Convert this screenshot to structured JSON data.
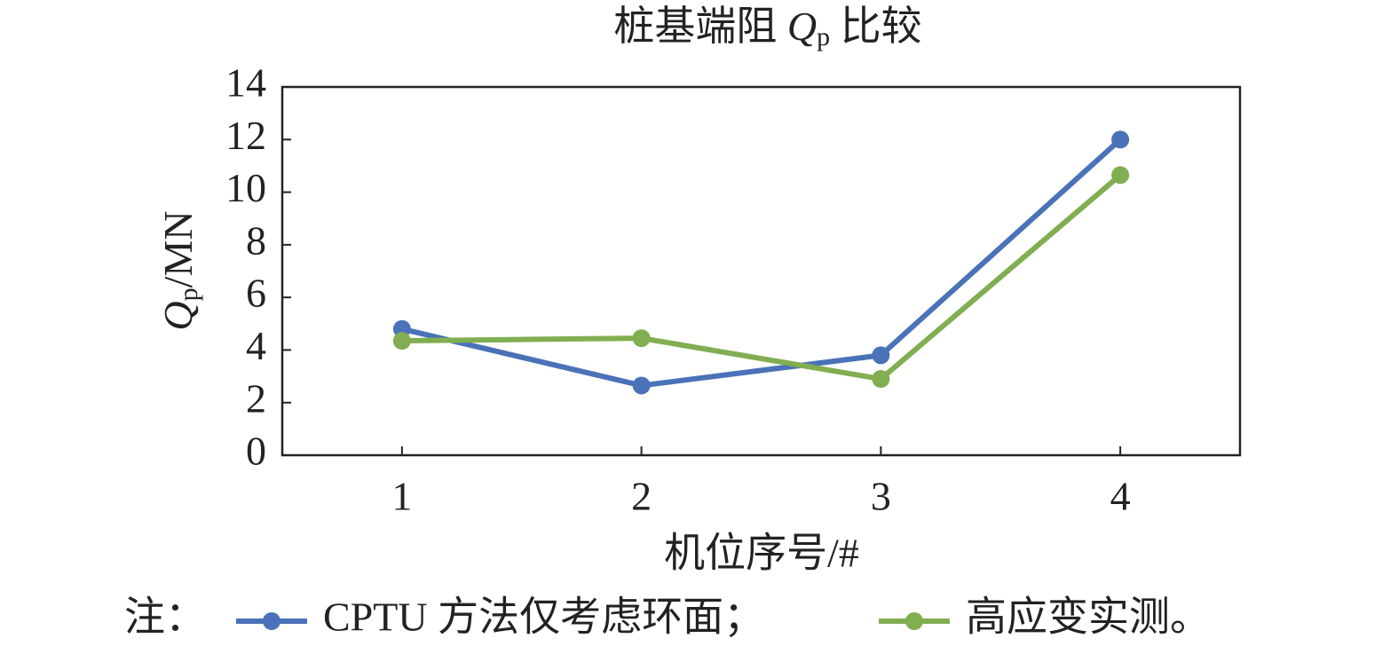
{
  "chart_data": {
    "type": "line",
    "title": [
      "桩基端阻 ",
      "Q",
      "p",
      " 比较"
    ],
    "xlabel": "机位序号/#",
    "ylabel": [
      "Q",
      "p",
      "/MN"
    ],
    "x": [
      1,
      2,
      3,
      4
    ],
    "xlim": [
      0.5,
      4.5
    ],
    "xticks": [
      1,
      2,
      3,
      4
    ],
    "ylim": [
      0,
      14
    ],
    "yticks": [
      0,
      2,
      4,
      6,
      8,
      10,
      12,
      14
    ],
    "legend_prefix": "注：",
    "series": [
      {
        "name": "CPTU 方法仅考虑环面；",
        "color": "#4a72b8",
        "values": [
          4.8,
          2.65,
          3.8,
          12.0
        ]
      },
      {
        "name": "高应变实测。",
        "color": "#80ae50",
        "values": [
          4.35,
          4.45,
          2.9,
          10.65
        ]
      }
    ]
  }
}
